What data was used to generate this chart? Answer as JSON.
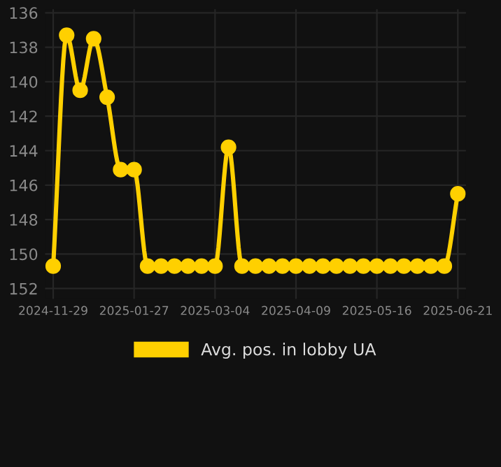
{
  "chart_data": {
    "type": "line",
    "categories": [
      "2024-11-29",
      null,
      null,
      null,
      null,
      null,
      "2025-01-27",
      null,
      null,
      null,
      null,
      null,
      "2025-03-04",
      null,
      null,
      null,
      null,
      null,
      "2025-04-09",
      null,
      null,
      null,
      null,
      null,
      "2025-05-16",
      null,
      null,
      null,
      null,
      null,
      "2025-06-21"
    ],
    "series": [
      {
        "name": "Avg. pos. in lobby UA",
        "color": "#ffd000",
        "values": [
          150.7,
          137.3,
          140.5,
          137.5,
          140.9,
          145.1,
          145.1,
          150.7,
          150.7,
          150.7,
          150.7,
          150.7,
          150.7,
          143.8,
          150.7,
          150.7,
          150.7,
          150.7,
          150.7,
          150.7,
          150.7,
          150.7,
          150.7,
          150.7,
          150.7,
          150.7,
          150.7,
          150.7,
          150.7,
          150.7,
          146.5
        ]
      }
    ],
    "ylim": [
      152.6,
      135.8
    ],
    "yticks": [
      136,
      138,
      140,
      142,
      144,
      146,
      148,
      150,
      152
    ],
    "grid": true,
    "legend": "bottom",
    "marker": "circle",
    "line_style": "solid"
  }
}
